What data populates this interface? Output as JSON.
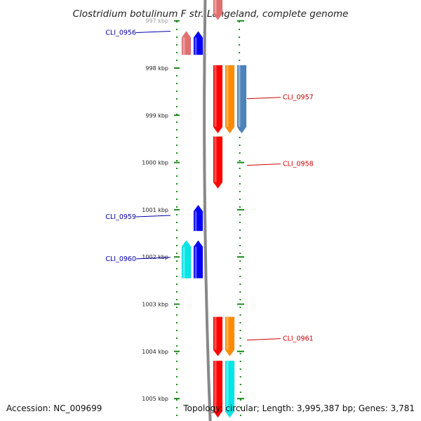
{
  "title": "Clostridium botulinum F str. Langeland, complete genome",
  "accession": "Accession: NC_009699",
  "topology": "Topology: circular; Length: 3,995,387 bp; Genes: 3,781",
  "colors": {
    "backbone": "#888888",
    "tick": "#1a8a1a",
    "label_left": "#0000aa",
    "label_right": "#cc0000",
    "red": "#ff0000",
    "blue": "#0000ff",
    "cyan": "#00e5e5",
    "orange": "#ff8c00",
    "steelblue": "#4f81bd",
    "salmon": "#e07070"
  },
  "ruler": {
    "unit": "kbp",
    "ticks": [
      {
        "label": "997 kbp",
        "kbp": 997
      },
      {
        "label": "998 kbp",
        "kbp": 998
      },
      {
        "label": "999 kbp",
        "kbp": 999
      },
      {
        "label": "1000 kbp",
        "kbp": 1000
      },
      {
        "label": "1001 kbp",
        "kbp": 1001
      },
      {
        "label": "1002 kbp",
        "kbp": 1002
      },
      {
        "label": "1003 kbp",
        "kbp": 1003
      },
      {
        "label": "1004 kbp",
        "kbp": 1004
      },
      {
        "label": "1005 kbp",
        "kbp": 1005
      }
    ]
  },
  "labels": [
    {
      "text": "CLI_0956",
      "side": "left",
      "kbp": 997.25
    },
    {
      "text": "CLI_0957",
      "side": "right",
      "kbp": 998.62
    },
    {
      "text": "CLI_0958",
      "side": "right",
      "kbp": 1000.03
    },
    {
      "text": "CLI_0959",
      "side": "left",
      "kbp": 1001.15
    },
    {
      "text": "CLI_0960",
      "side": "left",
      "kbp": 1002.04
    },
    {
      "text": "CLI_0961",
      "side": "right",
      "kbp": 1003.73
    }
  ],
  "features": [
    {
      "name": "CLI_0956",
      "strand": "-",
      "color": "salmon",
      "lane": 1,
      "start": 997.22,
      "end": 997.72
    },
    {
      "name": "CLI_0956",
      "strand": "-",
      "color": "blue",
      "lane": 0,
      "start": 997.22,
      "end": 997.72
    },
    {
      "name": "CLI_0957",
      "strand": "+",
      "color": "red",
      "lane": 0,
      "start": 997.94,
      "end": 999.38
    },
    {
      "name": "CLI_0957",
      "strand": "+",
      "color": "orange",
      "lane": 1,
      "start": 997.94,
      "end": 999.38
    },
    {
      "name": "CLI_0957",
      "strand": "+",
      "color": "steelblue",
      "lane": 2,
      "start": 997.94,
      "end": 999.38
    },
    {
      "name": "CLI_0958",
      "strand": "+",
      "color": "red",
      "lane": 0,
      "start": 999.45,
      "end": 1000.55
    },
    {
      "name": "CLI_0959",
      "strand": "-",
      "color": "blue",
      "lane": 0,
      "start": 1000.9,
      "end": 1001.45
    },
    {
      "name": "CLI_0960",
      "strand": "-",
      "color": "blue",
      "lane": 0,
      "start": 1001.65,
      "end": 1002.45
    },
    {
      "name": "CLI_0960",
      "strand": "-",
      "color": "cyan",
      "lane": 1,
      "start": 1001.65,
      "end": 1002.45
    },
    {
      "name": "CLI_0961",
      "strand": "+",
      "color": "red",
      "lane": 0,
      "start": 1003.27,
      "end": 1004.1
    },
    {
      "name": "CLI_0961",
      "strand": "+",
      "color": "orange",
      "lane": 1,
      "start": 1003.27,
      "end": 1004.1
    },
    {
      "name": "gene",
      "strand": "+",
      "color": "red",
      "lane": 0,
      "start": 1004.2,
      "end": 1005.4
    },
    {
      "name": "gene",
      "strand": "+",
      "color": "cyan",
      "lane": 1,
      "start": 1004.2,
      "end": 1005.4
    },
    {
      "name": "gene",
      "strand": "+",
      "color": "salmon",
      "lane": 0,
      "start": 996.5,
      "end": 996.98
    }
  ]
}
